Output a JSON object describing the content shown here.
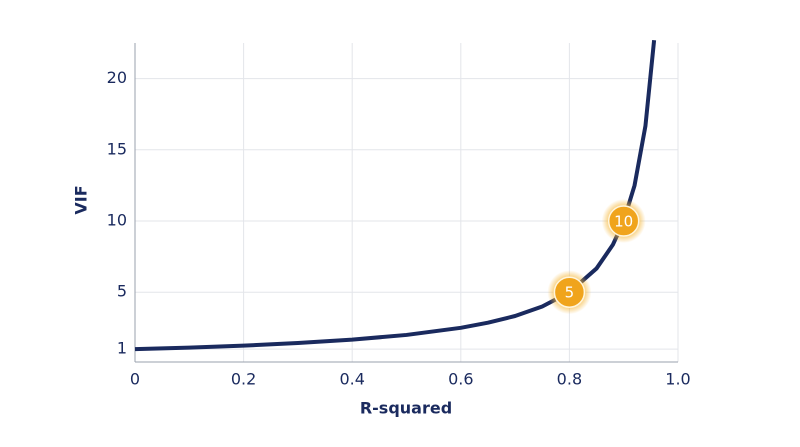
{
  "chart_data": {
    "type": "line",
    "x_label": "R-squared",
    "y_label": "VIF",
    "x": [
      0,
      0.1,
      0.2,
      0.3,
      0.4,
      0.5,
      0.6,
      0.65,
      0.7,
      0.75,
      0.8,
      0.85,
      0.88,
      0.9,
      0.92,
      0.94,
      0.956
    ],
    "series": [
      {
        "name": "VIF",
        "color": "#1a2a5e",
        "values": [
          1,
          1.11,
          1.25,
          1.43,
          1.67,
          2,
          2.5,
          2.86,
          3.33,
          4,
          5,
          6.67,
          8.33,
          10,
          12.5,
          16.67,
          22.7
        ]
      }
    ],
    "markers": [
      {
        "x": 0.8,
        "y": 5,
        "label": "5"
      },
      {
        "x": 0.9,
        "y": 10,
        "label": "10"
      }
    ],
    "marker_color": "#f0a41c",
    "xlim": [
      0,
      1
    ],
    "ylim": [
      0.1,
      22.5
    ],
    "xticks": [
      0,
      0.2,
      0.4,
      0.6,
      0.8,
      {
        "value": 1,
        "label": "1.0"
      }
    ],
    "yticks": [
      1,
      5,
      10,
      15,
      20
    ],
    "grid": true
  }
}
